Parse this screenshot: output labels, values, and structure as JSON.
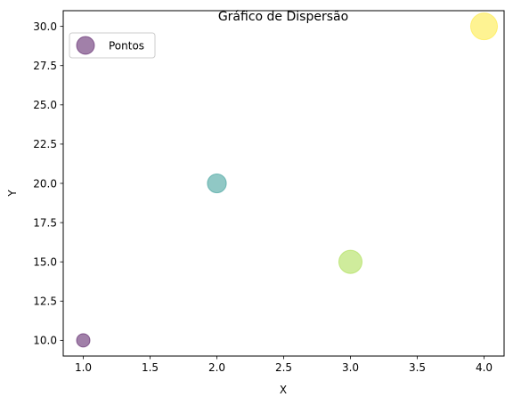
{
  "chart_data": {
    "type": "scatter",
    "title": "Gráfico de Dispersão",
    "xlabel": "X",
    "ylabel": "Y",
    "xlim": [
      0.85,
      4.15
    ],
    "ylim": [
      9.0,
      31.0
    ],
    "xticks": [
      1.0,
      1.5,
      2.0,
      2.5,
      3.0,
      3.5,
      4.0
    ],
    "yticks": [
      10.0,
      12.5,
      15.0,
      17.5,
      20.0,
      22.5,
      25.0,
      27.5,
      30.0
    ],
    "grid": false,
    "legend": {
      "entries": [
        "Pontos"
      ],
      "placement": "top-left"
    },
    "series": [
      {
        "name": "Pontos",
        "alpha": 0.5,
        "points": [
          {
            "x": 1,
            "y": 10,
            "color": "#440154",
            "size": 100
          },
          {
            "x": 2,
            "y": 20,
            "color": "#21918c",
            "size": 200
          },
          {
            "x": 3,
            "y": 15,
            "color": "#a0da39",
            "size": 300
          },
          {
            "x": 4,
            "y": 30,
            "color": "#fde725",
            "size": 400
          }
        ]
      }
    ],
    "legend_marker_color": "#440154"
  }
}
